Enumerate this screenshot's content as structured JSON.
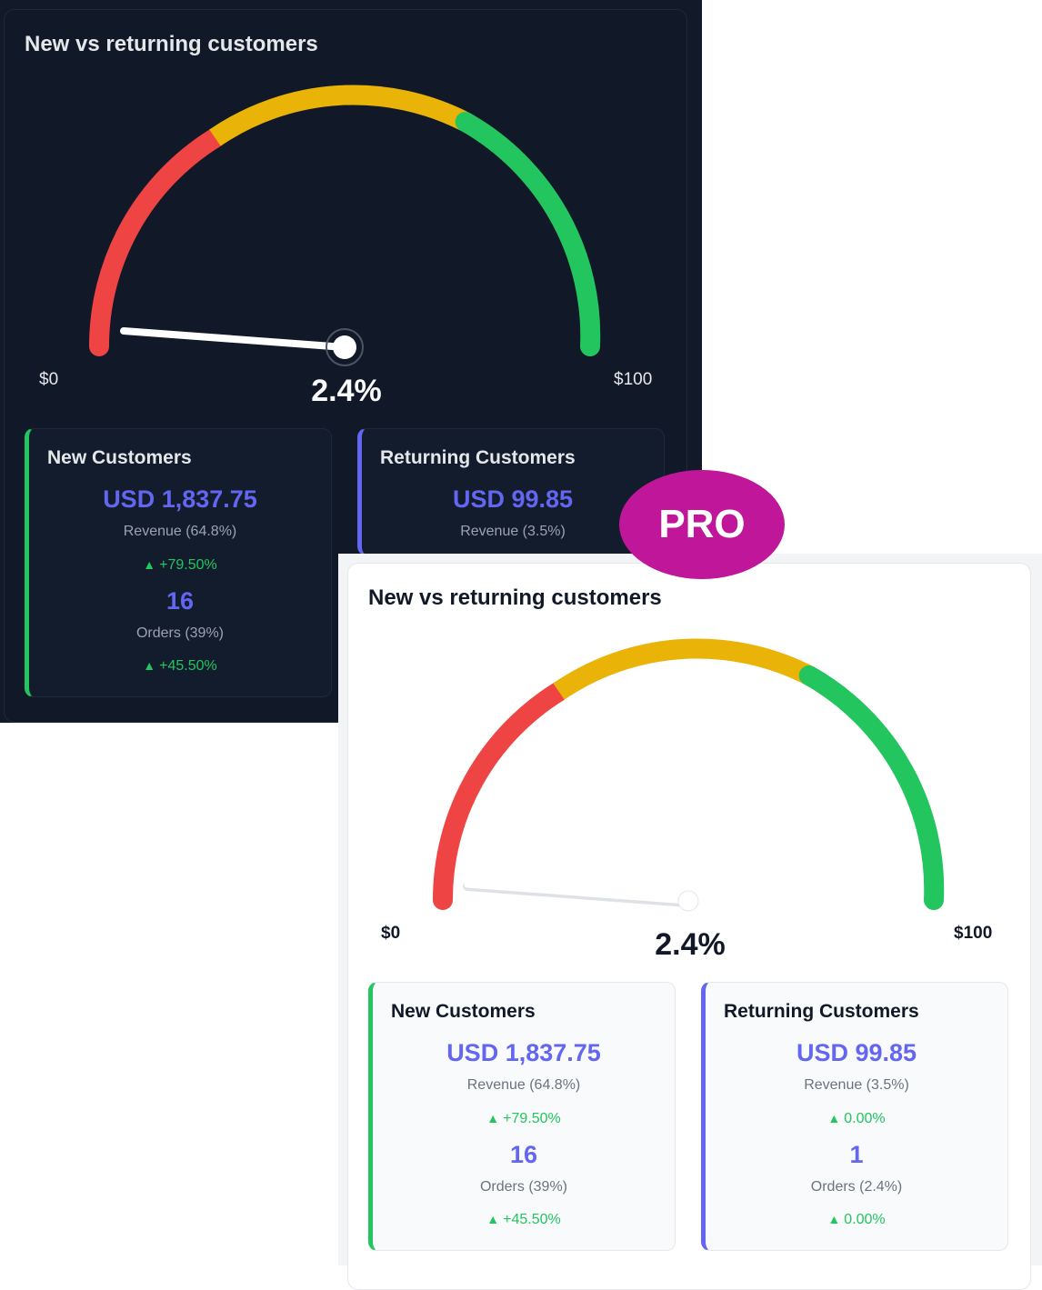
{
  "badge": "PRO",
  "panels": {
    "dark": {
      "title": "New vs returning customers",
      "gauge": {
        "min_label": "$0",
        "max_label": "$100",
        "value_label": "2.4%",
        "value_fraction": 0.024,
        "colors": [
          "#ef4444",
          "#eab308",
          "#22c55e"
        ]
      },
      "new": {
        "heading": "New Customers",
        "revenue": "USD 1,837.75",
        "revenue_label": "Revenue (64.8%)",
        "revenue_change": "+79.50%",
        "orders": "16",
        "orders_label": "Orders (39%)",
        "orders_change": "+45.50%"
      },
      "returning": {
        "heading": "Returning Customers",
        "revenue": "USD 99.85",
        "revenue_label": "Revenue (3.5%)"
      }
    },
    "light": {
      "title": "New vs returning customers",
      "gauge": {
        "min_label": "$0",
        "max_label": "$100",
        "value_label": "2.4%",
        "value_fraction": 0.024,
        "colors": [
          "#ef4444",
          "#eab308",
          "#22c55e"
        ]
      },
      "new": {
        "heading": "New Customers",
        "revenue": "USD 1,837.75",
        "revenue_label": "Revenue (64.8%)",
        "revenue_change": "+79.50%",
        "orders": "16",
        "orders_label": "Orders (39%)",
        "orders_change": "+45.50%"
      },
      "returning": {
        "heading": "Returning Customers",
        "revenue": "USD 99.85",
        "revenue_label": "Revenue (3.5%)",
        "revenue_change": "0.00%",
        "orders": "1",
        "orders_label": "Orders (2.4%)",
        "orders_change": "0.00%"
      }
    }
  }
}
